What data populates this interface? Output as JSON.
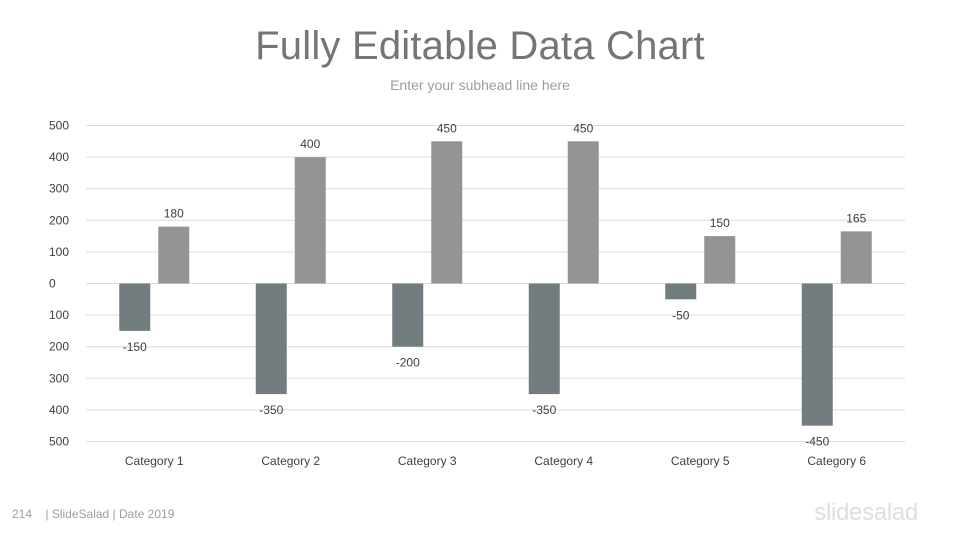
{
  "slide": {
    "title": "Fully Editable Data Chart",
    "subtitle": "Enter your subhead line here",
    "page_number": "214",
    "footer_text": "| SlideSalad | Date 2019",
    "logo_text": "slidesalad"
  },
  "chart_data": {
    "type": "bar",
    "title": "",
    "xlabel": "",
    "ylabel": "",
    "categories": [
      "Category 1",
      "Category 2",
      "Category 3",
      "Category 4",
      "Category 5",
      "Category 6"
    ],
    "series": [
      {
        "values": [
          -150,
          -350,
          -200,
          -350,
          -50,
          -450
        ],
        "color": "#737d80"
      },
      {
        "values": [
          180,
          400,
          450,
          450,
          150,
          165
        ],
        "color": "#949494"
      }
    ],
    "data_labels": [
      [
        "-150",
        "-350",
        "-200",
        "-350",
        "-50",
        "-450"
      ],
      [
        "180",
        "400",
        "450",
        "450",
        "150",
        "165"
      ]
    ],
    "ylim": [
      -500,
      500
    ],
    "yticks": [
      500,
      400,
      300,
      200,
      100,
      0,
      -100,
      -200,
      -300,
      -400,
      -500
    ],
    "ytick_labels": [
      "500",
      "400",
      "300",
      "200",
      "100",
      "0",
      "100",
      "200",
      "300",
      "400",
      "500"
    ],
    "grid": true,
    "legend": "none"
  }
}
